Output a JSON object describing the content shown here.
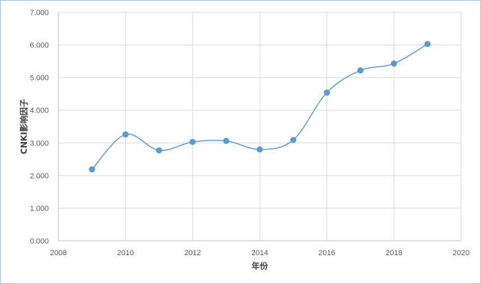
{
  "chart_data": {
    "type": "scatter",
    "smooth": true,
    "series": [
      {
        "x": [
          2009,
          2010,
          2011,
          2012,
          2013,
          2014,
          2015,
          2016,
          2017,
          2018,
          2019
        ],
        "y": [
          2.19,
          3.26,
          2.77,
          3.03,
          3.06,
          2.8,
          3.09,
          4.54,
          5.22,
          5.43,
          6.03
        ]
      }
    ],
    "xlabel": "年份",
    "ylabel": "CNKI影响因子",
    "xlim": [
      2008,
      2020
    ],
    "ylim": [
      0,
      7
    ],
    "x_ticks": [
      "2008",
      "2010",
      "2012",
      "2014",
      "2016",
      "2018",
      "2020"
    ],
    "y_ticks": [
      "0.000",
      "1.000",
      "2.000",
      "3.000",
      "4.000",
      "5.000",
      "6.000",
      "7.000"
    ],
    "grid": true,
    "legend": "none",
    "colors": {
      "series": "#5b9bd5",
      "grid": "#d9d9d9",
      "border": "#9dc3e6"
    }
  }
}
